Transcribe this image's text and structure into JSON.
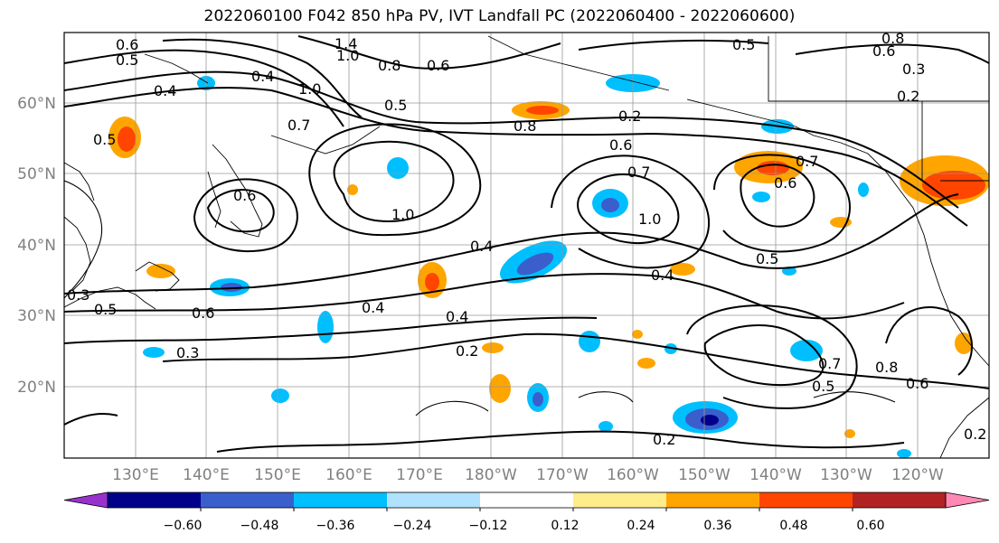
{
  "title": "2022060100 F042 850 hPa PV, IVT Landfall PC (2022060400 - 2022060600)",
  "map": {
    "lat_labels": [
      "60°N",
      "50°N",
      "40°N",
      "30°N",
      "20°N"
    ],
    "lon_labels": [
      "130°E",
      "140°E",
      "150°E",
      "160°E",
      "170°E",
      "180°W",
      "170°W",
      "160°W",
      "150°W",
      "140°W",
      "130°W",
      "120°W"
    ],
    "grid": true,
    "contour_labels": [
      "0.6",
      "0.5",
      "1.4",
      "1.0",
      "0.8",
      "0.6",
      "0.5",
      "0.8",
      "0.6",
      "0.3",
      "0.2",
      "0.4",
      "0.4",
      "1.0",
      "0.5",
      "0.7",
      "0.5",
      "0.8",
      "0.6",
      "0.2",
      "0.7",
      "0.6",
      "0.7",
      "0.6",
      "1.0",
      "1.0",
      "0.4",
      "0.4",
      "0.5",
      "0.4",
      "0.4",
      "0.6",
      "0.5",
      "0.3",
      "0.2",
      "0.3",
      "0.7",
      "0.5",
      "0.8",
      "0.6",
      "0.2",
      "0.2"
    ]
  },
  "colorbar": {
    "tick_labels": [
      "−0.60",
      "−0.48",
      "−0.36",
      "−0.24",
      "−0.12",
      "0.12",
      "0.24",
      "0.36",
      "0.48",
      "0.60"
    ],
    "colors": [
      "#9932cc",
      "#00008b",
      "#3a5fcd",
      "#00bfff",
      "#b0e2ff",
      "#ffffff",
      "#ffec8b",
      "#ffa500",
      "#ff4500",
      "#b22222",
      "#ff88b4"
    ]
  },
  "colors": {
    "axis_text": "#808080",
    "gridline": "#999999",
    "contour": "#000000"
  }
}
